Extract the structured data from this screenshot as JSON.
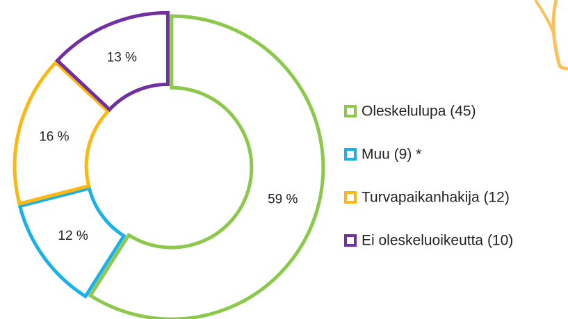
{
  "chart_data": {
    "type": "donut",
    "categories": [
      "Oleskelulupa (45)",
      "Muu (9) *",
      "Turvapaikanhakija (12)",
      "Ei oleskeluoikeutta (10)"
    ],
    "values": [
      59,
      12,
      16,
      13
    ],
    "value_labels": [
      "59 %",
      "12 %",
      "16 %",
      "13 %"
    ],
    "colors": [
      "#8cc84b",
      "#1ab0e8",
      "#fbb814",
      "#7030a0"
    ],
    "legend": "right"
  }
}
